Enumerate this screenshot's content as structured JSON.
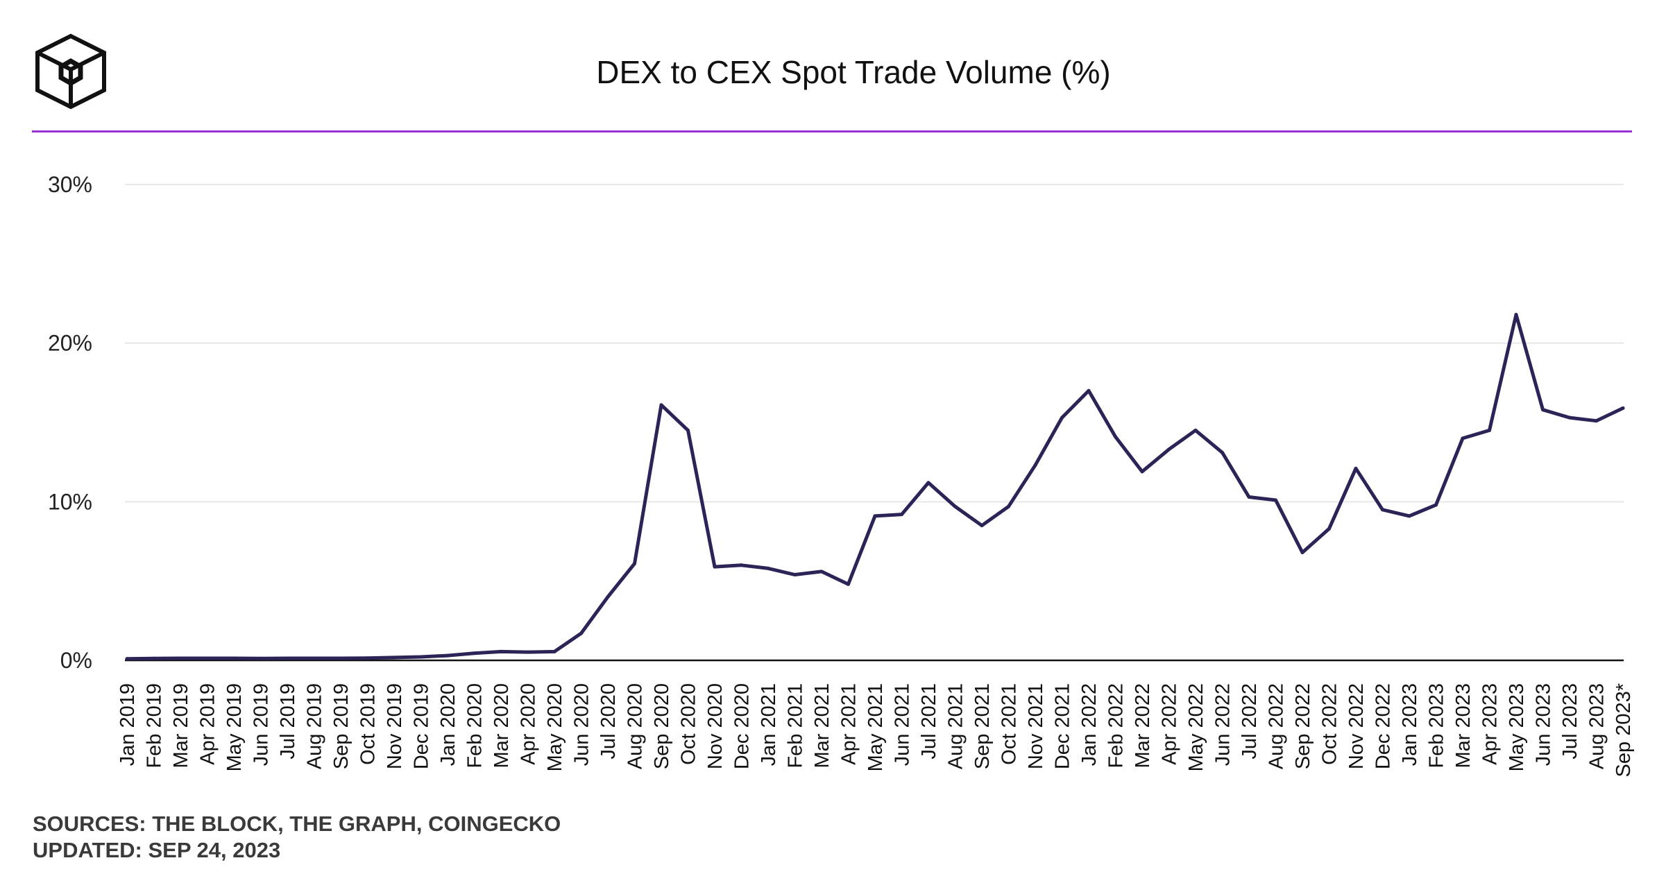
{
  "header": {
    "logo_icon": "the-block-cube-logo-icon",
    "title": "DEX to CEX Spot Trade Volume (%)",
    "accent_color": "#9b2fd6"
  },
  "footer": {
    "sources": "SOURCES: THE BLOCK, THE GRAPH, COINGECKO",
    "updated": "UPDATED: SEP 24, 2023"
  },
  "chart_data": {
    "type": "line",
    "title": "DEX to CEX Spot Trade Volume (%)",
    "xlabel": "",
    "ylabel": "",
    "ylim": [
      0,
      30
    ],
    "yticks": [
      0,
      10,
      20,
      30
    ],
    "ytick_labels": [
      "0%",
      "10%",
      "20%",
      "30%"
    ],
    "grid": true,
    "line_color": "#2a2457",
    "categories": [
      "Jan 2019",
      "Feb 2019",
      "Mar 2019",
      "Apr 2019",
      "May 2019",
      "Jun 2019",
      "Jul 2019",
      "Aug 2019",
      "Sep 2019",
      "Oct 2019",
      "Nov 2019",
      "Dec 2019",
      "Jan 2020",
      "Feb 2020",
      "Mar 2020",
      "Apr 2020",
      "May 2020",
      "Jun 2020",
      "Jul 2020",
      "Aug 2020",
      "Sep 2020",
      "Oct 2020",
      "Nov 2020",
      "Dec 2020",
      "Jan 2021",
      "Feb 2021",
      "Mar 2021",
      "Apr 2021",
      "May 2021",
      "Jun 2021",
      "Jul 2021",
      "Aug 2021",
      "Sep 2021",
      "Oct 2021",
      "Nov 2021",
      "Dec 2021",
      "Jan 2022",
      "Feb 2022",
      "Mar 2022",
      "Apr 2022",
      "May 2022",
      "Jun 2022",
      "Jul 2022",
      "Aug 2022",
      "Sep 2022",
      "Oct 2022",
      "Nov 2022",
      "Dec 2022",
      "Jan 2023",
      "Feb 2023",
      "Mar 2023",
      "Apr 2023",
      "May 2023",
      "Jun 2023",
      "Jul 2023",
      "Aug 2023",
      "Sep 2023*"
    ],
    "series": [
      {
        "values": [
          0.1,
          0.12,
          0.13,
          0.13,
          0.13,
          0.12,
          0.13,
          0.13,
          0.13,
          0.14,
          0.18,
          0.22,
          0.3,
          0.45,
          0.55,
          0.52,
          0.55,
          1.7,
          4.0,
          6.1,
          16.1,
          14.5,
          5.9,
          6.0,
          5.8,
          5.4,
          5.6,
          4.8,
          9.1,
          9.2,
          11.2,
          9.7,
          8.5,
          9.7,
          12.3,
          15.3,
          17.0,
          14.1,
          11.9,
          13.3,
          14.5,
          13.1,
          10.3,
          10.1,
          6.8,
          8.3,
          12.1,
          9.5,
          9.1,
          9.8,
          14.0,
          14.5,
          21.8,
          15.8,
          15.3,
          15.1,
          15.9
        ]
      }
    ]
  }
}
